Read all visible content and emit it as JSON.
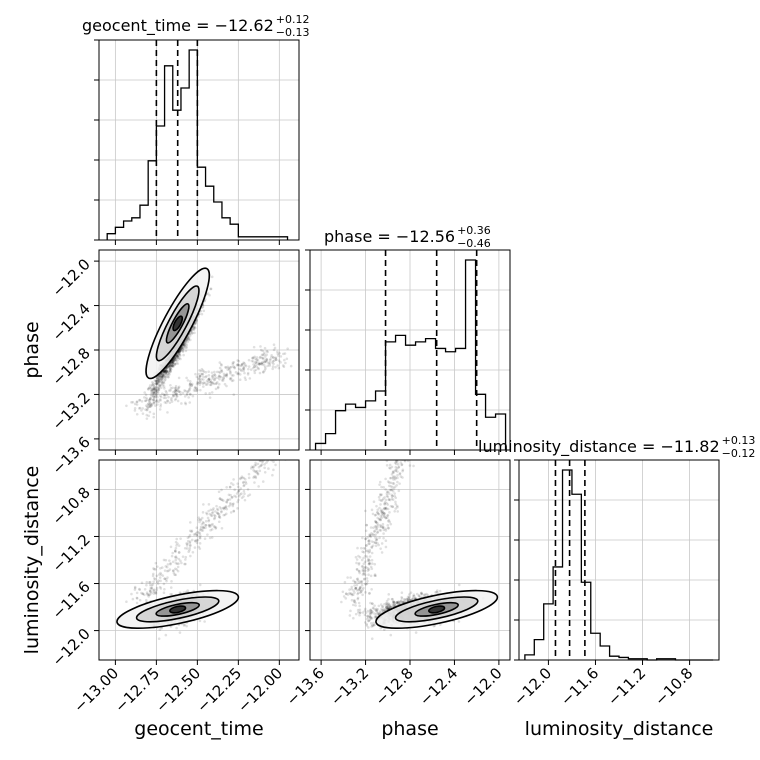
{
  "chart_data": {
    "type": "corner",
    "parameters": [
      "geocent_time",
      "phase",
      "luminosity_distance"
    ],
    "ranges": {
      "geocent_time": [
        -13.1,
        -11.88
      ],
      "phase": [
        -13.7,
        -11.9
      ],
      "luminosity_distance": [
        -12.25,
        -10.55
      ]
    },
    "ticks": {
      "geocent_time": {
        "values": [
          -13.0,
          -12.75,
          -12.5,
          -12.25,
          -12.0
        ],
        "labels": [
          "−13.00",
          "−12.75",
          "−12.50",
          "−12.25",
          "−12.00"
        ]
      },
      "phase": {
        "values": [
          -13.6,
          -13.2,
          -12.8,
          -12.4,
          -12.0
        ],
        "labels": [
          "−13.6",
          "−13.2",
          "−12.8",
          "−12.4",
          "−12.0"
        ]
      },
      "luminosity_distance": {
        "values": [
          -12.0,
          -11.6,
          -11.2,
          -10.8
        ],
        "labels": [
          "−12.0",
          "−11.6",
          "−11.2",
          "−10.8"
        ]
      }
    },
    "axis_labels": {
      "geocent_time": "geocent_time",
      "phase": "phase",
      "luminosity_distance": "luminosity_distance"
    },
    "titles": [
      {
        "param": "geocent_time",
        "text": "geocent_time = −12.62",
        "sup": "+0.12",
        "sub": "−0.13"
      },
      {
        "param": "phase",
        "text": "phase = −12.56",
        "sup": "+0.36",
        "sub": "−0.46"
      },
      {
        "param": "luminosity_distance",
        "text": "luminosity_distance = −11.82",
        "sup": "+0.13",
        "sub": "−0.12"
      }
    ],
    "quantiles": {
      "geocent_time": [
        -12.75,
        -12.62,
        -12.5
      ],
      "phase": [
        -13.02,
        -12.56,
        -12.2
      ],
      "luminosity_distance": [
        -11.94,
        -11.82,
        -11.69
      ]
    },
    "histograms": {
      "geocent_time": {
        "edges": [
          -13.05,
          -13.0,
          -12.95,
          -12.9,
          -12.85,
          -12.8,
          -12.75,
          -12.7,
          -12.65,
          -12.6,
          -12.55,
          -12.5,
          -12.45,
          -12.4,
          -12.35,
          -12.3,
          -12.25,
          -12.2,
          -12.15,
          -12.1,
          -12.05,
          -12.0,
          -11.95
        ],
        "counts": [
          2,
          4,
          6,
          7,
          11,
          25,
          36,
          55,
          41,
          48,
          60,
          23,
          17,
          12,
          7,
          5,
          1,
          1,
          1,
          1,
          1,
          1
        ]
      },
      "phase": {
        "edges": [
          -13.65,
          -13.56,
          -13.47,
          -13.38,
          -13.29,
          -13.2,
          -13.11,
          -13.02,
          -12.93,
          -12.84,
          -12.75,
          -12.66,
          -12.57,
          -12.48,
          -12.39,
          -12.3,
          -12.21,
          -12.12,
          -12.03,
          -11.94
        ],
        "counts": [
          2,
          5,
          12,
          14,
          13,
          15,
          18,
          33,
          35,
          32,
          33,
          34,
          31,
          30,
          31,
          58,
          17,
          10,
          11
        ]
      },
      "luminosity_distance": {
        "edges": [
          -12.2,
          -12.12,
          -12.04,
          -11.96,
          -11.88,
          -11.8,
          -11.72,
          -11.64,
          -11.56,
          -11.48,
          -11.4,
          -11.32,
          -11.24,
          -11.16,
          -11.08,
          -11.0,
          -10.92,
          -10.84,
          -10.76,
          -10.68,
          -10.6
        ],
        "counts": [
          4,
          16,
          44,
          73,
          149,
          130,
          61,
          21,
          11,
          3,
          2,
          1,
          1,
          0,
          1,
          1,
          0,
          0,
          0,
          0
        ]
      }
    },
    "grid": true,
    "legend": "none"
  }
}
